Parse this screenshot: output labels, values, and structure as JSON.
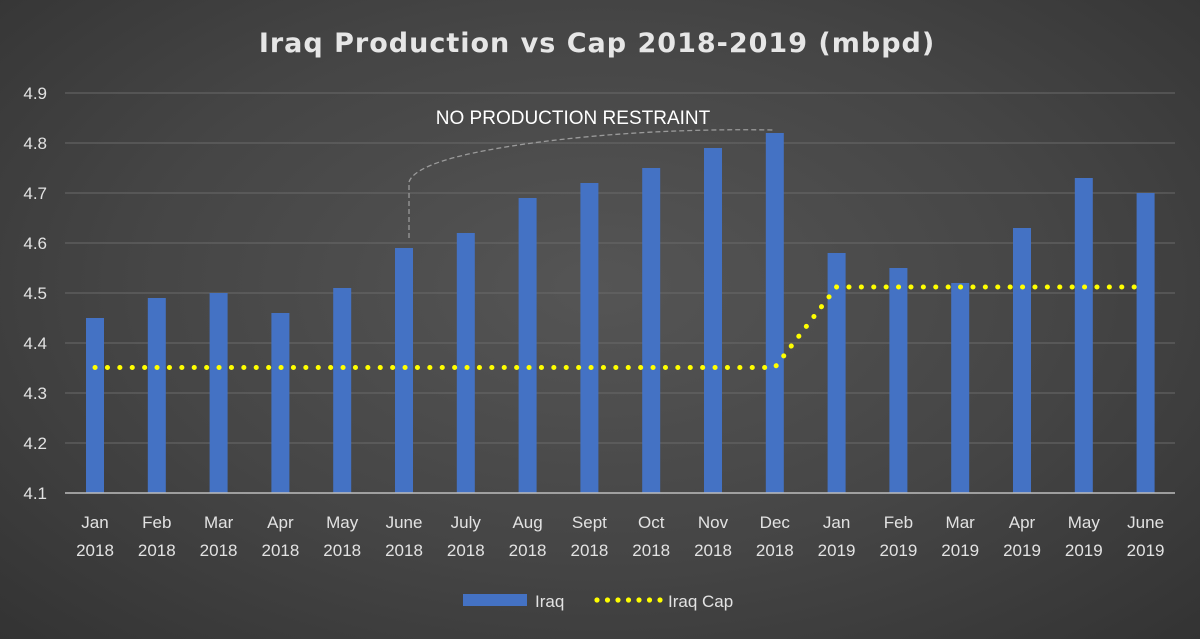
{
  "chart_data": {
    "type": "bar",
    "title": "Iraq Production vs Cap 2018-2019 (mbpd)",
    "categories": [
      [
        "Jan",
        "2018"
      ],
      [
        "Feb",
        "2018"
      ],
      [
        "Mar",
        "2018"
      ],
      [
        "Apr",
        "2018"
      ],
      [
        "May",
        "2018"
      ],
      [
        "June",
        "2018"
      ],
      [
        "July",
        "2018"
      ],
      [
        "Aug",
        "2018"
      ],
      [
        "Sept",
        "2018"
      ],
      [
        "Oct",
        "2018"
      ],
      [
        "Nov",
        "2018"
      ],
      [
        "Dec",
        "2018"
      ],
      [
        "Jan",
        "2019"
      ],
      [
        "Feb",
        "2019"
      ],
      [
        "Mar",
        "2019"
      ],
      [
        "Apr",
        "2019"
      ],
      [
        "May",
        "2019"
      ],
      [
        "June",
        "2019"
      ]
    ],
    "series": [
      {
        "name": "Iraq",
        "type": "bar",
        "color": "#4472c4",
        "values": [
          4.45,
          4.49,
          4.5,
          4.46,
          4.51,
          4.59,
          4.62,
          4.69,
          4.72,
          4.75,
          4.79,
          4.82,
          4.58,
          4.55,
          4.52,
          4.63,
          4.73,
          4.7
        ]
      },
      {
        "name": "Iraq Cap",
        "type": "line",
        "style": "dotted",
        "color": "#ffff00",
        "values": [
          4.351,
          4.351,
          4.351,
          4.351,
          4.351,
          4.351,
          4.351,
          4.351,
          4.351,
          4.351,
          4.351,
          4.351,
          4.512,
          4.512,
          4.512,
          4.512,
          4.512,
          4.512
        ]
      }
    ],
    "ylim": [
      4.1,
      4.9
    ],
    "yticks": [
      "4.1",
      "4.2",
      "4.3",
      "4.4",
      "4.5",
      "4.6",
      "4.7",
      "4.8",
      "4.9"
    ],
    "grid": true,
    "legend_position": "bottom",
    "annotation": {
      "text": "NO PRODUCTION RESTRAINT",
      "from_category": 5,
      "to_category": 11
    }
  }
}
